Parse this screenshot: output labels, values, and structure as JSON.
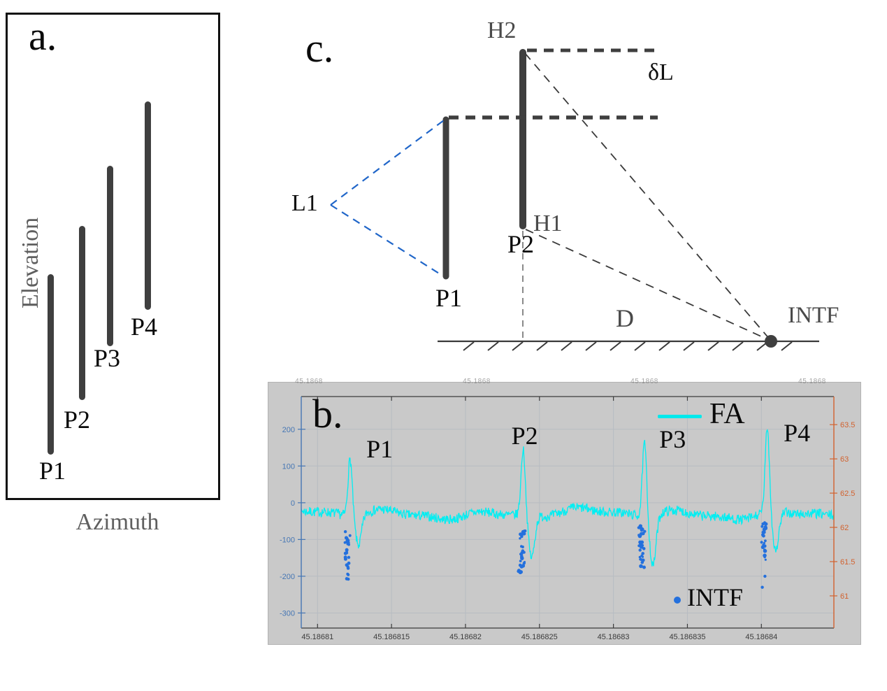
{
  "panel_a": {
    "label": "a.",
    "y_axis_label": "Elevation",
    "x_axis_label": "Azimuth",
    "bars": [
      {
        "label": "P1"
      },
      {
        "label": "P2"
      },
      {
        "label": "P3"
      },
      {
        "label": "P4"
      }
    ]
  },
  "panel_c": {
    "label": "c.",
    "h2_label": "H2",
    "delta_l_label": "δL",
    "l1_label": "L1",
    "h1_label": "H1",
    "pole2_label": "P2",
    "pole1_label": "P1",
    "distance_label": "D",
    "intf_label": "INTF"
  },
  "panel_b": {
    "label": "b."
  },
  "chart_data": {
    "type": "line",
    "title": "",
    "background": "#c9c9c9",
    "grid": true,
    "x_axis": {
      "tick_values": [
        45.18681,
        45.186815,
        45.18682,
        45.186825,
        45.18683,
        45.186835,
        45.18684
      ],
      "tick_labels": [
        "45.18681",
        "45.186815",
        "45.18682",
        "45.186825",
        "45.18683",
        "45.186835",
        "45.18684"
      ],
      "xlim": [
        45.1868089,
        45.1868449
      ],
      "top_faint_labels": [
        "45.1868",
        "45.1868",
        "45.1868",
        "45.1868"
      ]
    },
    "y_left_axis": {
      "color": "#4576b4",
      "tick_values": [
        200,
        100,
        0,
        -100,
        -200,
        -300
      ],
      "tick_labels": [
        "200",
        "100",
        "0",
        "-100",
        "-200",
        "-300"
      ],
      "ylim": [
        -341,
        289
      ]
    },
    "y_right_axis": {
      "color": "#d2622f",
      "tick_values": [
        63.5,
        63,
        62.5,
        62,
        61.5,
        61
      ],
      "tick_labels": [
        "63.5",
        "63",
        "62.5",
        "62",
        "61.5",
        "61"
      ],
      "ylim": [
        60.53,
        63.91
      ]
    },
    "series": [
      {
        "name": "FA",
        "type": "line",
        "color": "#00eef2",
        "axis": "left",
        "baseline": -30,
        "noise_amplitude": 14,
        "pulses": [
          {
            "label": "P1",
            "x": 45.1868122,
            "peak": 125,
            "dip": -112
          },
          {
            "label": "P2",
            "x": 45.1868239,
            "peak": 150,
            "dip": -145
          },
          {
            "label": "P3",
            "x": 45.1868321,
            "peak": 172,
            "dip": -168
          },
          {
            "label": "P4",
            "x": 45.1868404,
            "peak": 200,
            "dip": -136
          }
        ]
      },
      {
        "name": "INTF",
        "type": "scatter",
        "color": "#2470dd",
        "axis": "left",
        "clusters": [
          {
            "x": 45.186812,
            "y_min": -213,
            "y_max": -78,
            "count": 26,
            "outliers": [
              -208
            ]
          },
          {
            "x": 45.1868238,
            "y_min": -200,
            "y_max": -75,
            "count": 32,
            "outliers": []
          },
          {
            "x": 45.1868319,
            "y_min": -178,
            "y_max": -62,
            "count": 32,
            "outliers": []
          },
          {
            "x": 45.1868402,
            "y_min": -158,
            "y_max": -52,
            "count": 24,
            "outliers": [
              -200,
              -230
            ]
          }
        ]
      }
    ],
    "annotations": [
      {
        "label": "P1",
        "x": 45.1868142,
        "y": 147
      },
      {
        "label": "P2",
        "x": 45.186824,
        "y": 183
      },
      {
        "label": "P3",
        "x": 45.186834,
        "y": 173
      },
      {
        "label": "P4",
        "x": 45.1868424,
        "y": 190
      }
    ],
    "legend": {
      "line_label": "FA",
      "scatter_label": "INTF",
      "position": "upper right / lower right"
    }
  }
}
